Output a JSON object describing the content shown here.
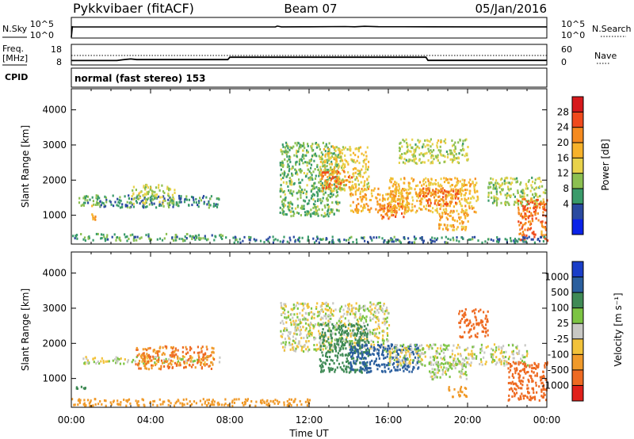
{
  "header": {
    "station": "Pykkvibaer (fitACF)",
    "beam": "Beam 07",
    "date": "05/Jan/2016"
  },
  "left_labels": {
    "nsky": "N.Sky",
    "freq": "Freq.",
    "freq_unit": "[MHz]",
    "cpid": "CPID"
  },
  "right_labels": {
    "nsearch": "N.Search",
    "nave": "Nave"
  },
  "cpid_text": "normal (fast stereo) 153",
  "ticks": {
    "noise_left": [
      "10^5",
      "10^0"
    ],
    "noise_right": [
      "10^5",
      "10^0"
    ],
    "freq_left": [
      "18",
      "8"
    ],
    "nave_right": [
      "60",
      "0"
    ],
    "range": [
      "4000",
      "3000",
      "2000",
      "1000"
    ],
    "time": [
      "00:00",
      "04:00",
      "08:00",
      "12:00",
      "16:00",
      "20:00",
      "00:00"
    ]
  },
  "axis": {
    "xlabel": "Time UT",
    "ylabel": "Slant Range [km]"
  },
  "colorbars": {
    "power": {
      "title": "Power [dB]",
      "labels": [
        "28",
        "24",
        "20",
        "16",
        "12",
        "8",
        "4"
      ],
      "colors": [
        "#d7191c",
        "#f04a1c",
        "#f58a1f",
        "#f7b22a",
        "#e8d24a",
        "#8cc051",
        "#3a9b6a",
        "#2a4aa0",
        "#0a22e8"
      ]
    },
    "velocity": {
      "title": "Velocity [m s⁻¹]",
      "labels": [
        "1000",
        "500",
        "100",
        "25",
        "-25",
        "-100",
        "-500",
        "-1000"
      ],
      "colors": [
        "#1a3ec8",
        "#2b5f9e",
        "#3f8a55",
        "#7cc443",
        "#c8c8c4",
        "#f2c23a",
        "#f09a2a",
        "#ee6a22",
        "#e0201a"
      ]
    }
  },
  "chart_data": [
    {
      "type": "line",
      "title": "N.Sky / N.Search",
      "x_range_hours": [
        0,
        24
      ],
      "y_scale": "log",
      "ylim": [
        1,
        100000
      ],
      "series": [
        {
          "x": [
            0,
            0.05,
            0.1,
            3,
            6,
            9,
            10.3,
            10.4,
            10.6,
            12,
            13.8,
            14.3,
            14.8,
            15.5,
            18,
            21,
            24
          ],
          "values": [
            1,
            3000,
            2600,
            2700,
            2600,
            2700,
            2800,
            5000,
            2800,
            2900,
            3500,
            3000,
            4200,
            3100,
            2900,
            2800,
            2800
          ]
        }
      ]
    },
    {
      "type": "line",
      "title": "Freq. / Nave",
      "x_range_hours": [
        0,
        24
      ],
      "ylim": [
        8,
        18
      ],
      "series": [
        {
          "x": [
            0,
            2.3,
            2.6,
            3.0,
            3.3,
            7.9,
            8.0,
            17.9,
            18.0,
            24
          ],
          "values": [
            9.8,
            9.8,
            10.3,
            10.8,
            10.4,
            10.4,
            11.9,
            11.9,
            9.9,
            9.9
          ]
        },
        {
          "x": [
            0,
            24
          ],
          "values": [
            13,
            13
          ]
        }
      ]
    },
    {
      "type": "heatmap",
      "title": "Power [dB]",
      "xlabel": "Time UT",
      "ylabel": "Slant Range [km]",
      "x_range_hours": [
        0,
        24
      ],
      "ylim": [
        180,
        4600
      ],
      "regions": [
        {
          "t0": 0.0,
          "t1": 7.8,
          "r0": 300,
          "r1": 500,
          "value": 9
        },
        {
          "t0": 0.3,
          "t1": 1.3,
          "r0": 1300,
          "r1": 1600,
          "value": 9
        },
        {
          "t0": 1.0,
          "t1": 1.2,
          "r0": 850,
          "r1": 1300,
          "value": 20
        },
        {
          "t0": 1.2,
          "t1": 7.5,
          "r0": 1250,
          "r1": 1600,
          "value": 7
        },
        {
          "t0": 3.0,
          "t1": 5.2,
          "r0": 1350,
          "r1": 1900,
          "value": 13
        },
        {
          "t0": 10.5,
          "t1": 13.5,
          "r0": 1000,
          "r1": 3100,
          "value": 10
        },
        {
          "t0": 12.5,
          "t1": 15.0,
          "r0": 1700,
          "r1": 3000,
          "value": 16
        },
        {
          "t0": 12.6,
          "t1": 14.2,
          "r0": 1800,
          "r1": 2300,
          "value": 24
        },
        {
          "t0": 14.0,
          "t1": 17.0,
          "r0": 1100,
          "r1": 1800,
          "value": 20
        },
        {
          "t0": 15.5,
          "t1": 16.8,
          "r0": 900,
          "r1": 1400,
          "value": 24
        },
        {
          "t0": 16.0,
          "t1": 20.5,
          "r0": 1100,
          "r1": 2100,
          "value": 18
        },
        {
          "t0": 17.5,
          "t1": 19.5,
          "r0": 1300,
          "r1": 1800,
          "value": 24
        },
        {
          "t0": 18.5,
          "t1": 20.0,
          "r0": 600,
          "r1": 1100,
          "value": 20
        },
        {
          "t0": 16.5,
          "t1": 20.0,
          "r0": 2500,
          "r1": 3200,
          "value": 13
        },
        {
          "t0": 21.0,
          "t1": 23.9,
          "r0": 1300,
          "r1": 2100,
          "value": 12
        },
        {
          "t0": 22.5,
          "t1": 24.0,
          "r0": 300,
          "r1": 1500,
          "value": 24
        },
        {
          "t0": 8.0,
          "t1": 24.0,
          "r0": 250,
          "r1": 420,
          "value": 6
        }
      ]
    },
    {
      "type": "heatmap",
      "title": "Velocity [m s⁻¹]",
      "xlabel": "Time UT",
      "ylabel": "Slant Range [km]",
      "x_range_hours": [
        0,
        24
      ],
      "ylim": [
        180,
        4600
      ],
      "regions": [
        {
          "t0": 0.0,
          "t1": 12.0,
          "r0": 250,
          "r1": 450,
          "value": -100
        },
        {
          "t0": 0.2,
          "t1": 1.2,
          "r0": 700,
          "r1": 800,
          "value": 150
        },
        {
          "t0": 0.5,
          "t1": 7.5,
          "r0": 1450,
          "r1": 1650,
          "value": 0
        },
        {
          "t0": 3.2,
          "t1": 7.2,
          "r0": 1300,
          "r1": 1950,
          "value": -300
        },
        {
          "t0": 10.5,
          "t1": 16.0,
          "r0": 1800,
          "r1": 3200,
          "value": 0
        },
        {
          "t0": 12.5,
          "t1": 15.0,
          "r0": 1200,
          "r1": 2600,
          "value": 120
        },
        {
          "t0": 14.0,
          "t1": 17.5,
          "r0": 1200,
          "r1": 2000,
          "value": 600
        },
        {
          "t0": 16.0,
          "t1": 23.0,
          "r0": 1400,
          "r1": 2000,
          "value": 0
        },
        {
          "t0": 18.0,
          "t1": 20.0,
          "r0": 1000,
          "r1": 1500,
          "value": 10
        },
        {
          "t0": 19.0,
          "t1": 20.0,
          "r0": 500,
          "r1": 800,
          "value": -150
        },
        {
          "t0": 22.0,
          "t1": 24.0,
          "r0": 400,
          "r1": 1500,
          "value": -700
        },
        {
          "t0": 19.5,
          "t1": 21.0,
          "r0": 2200,
          "r1": 3000,
          "value": -600
        }
      ]
    }
  ]
}
